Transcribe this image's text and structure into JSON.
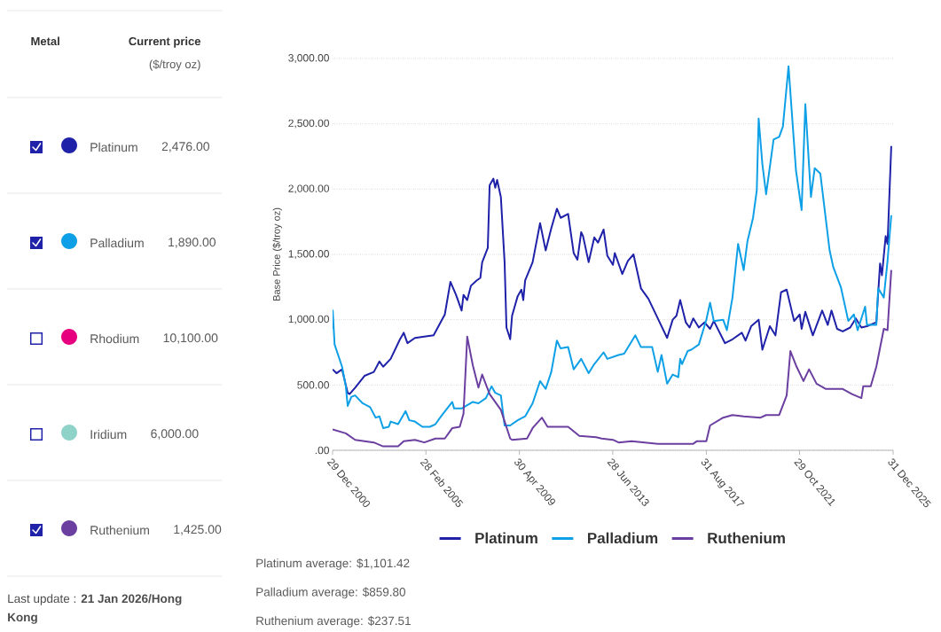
{
  "chart_data": [
    {
      "type": "other",
      "categories": [
        "Platinum",
        "Palladium",
        "Rhodium",
        "Iridium",
        "Ruthenium"
      ],
      "value_labels": [
        "2,476.00",
        "1,890.00",
        "10,100.00",
        "6,000.00",
        "1,425.00"
      ],
      "colors": [
        "#1f22a8",
        "#0ea0e6",
        "#e6007e",
        "#8fd3c8",
        "#6b3fa0"
      ],
      "annotations": [
        "Metal",
        "Current price",
        "($/troy oz)",
        "Last update : **21 Jan 2026/Hong Kong**"
      ]
    },
    {
      "type": "line",
      "ylabel": "Base Price ($/troy oz)",
      "xlim": [
        "2000-12-29",
        "2025-12-31"
      ],
      "ylim": [
        0,
        3000
      ],
      "xticks": [
        {
          "value": "2000-12-29",
          "label": "29 Dec 2000"
        },
        {
          "value": "2005-02-28",
          "label": "28 Feb 2005"
        },
        {
          "value": "2009-04-30",
          "label": "30 Apr 2009"
        },
        {
          "value": "2013-06-28",
          "label": "28 Jun 2013"
        },
        {
          "value": "2017-08-31",
          "label": "31 Aug 2017"
        },
        {
          "value": "2021-10-29",
          "label": "29 Oct 2021"
        },
        {
          "value": "2025-12-31",
          "label": "31 Dec 2025"
        }
      ],
      "yticks": [
        {
          "value": 0,
          "label": ".00"
        },
        {
          "value": 500,
          "label": "500.00"
        },
        {
          "value": 1000,
          "label": "1,000.00"
        },
        {
          "value": 1500,
          "label": "1,500.00"
        },
        {
          "value": 2000,
          "label": "2,000.00"
        },
        {
          "value": 2500,
          "label": "2,500.00"
        },
        {
          "value": 3000,
          "label": "3,000.00"
        }
      ],
      "grid": "y",
      "legend": "bottom",
      "series": [
        {
          "name": "Platinum",
          "color": "#1f22a8",
          "x": [
            "2000-12-29",
            "2001-03",
            "2001-06",
            "2001-09",
            "2001-10",
            "2002-01",
            "2002-06",
            "2002-11",
            "2003-02",
            "2003-04",
            "2003-08",
            "2004-01",
            "2004-03",
            "2004-05",
            "2004-09",
            "2005-07",
            "2006-01",
            "2006-04",
            "2006-07",
            "2006-10",
            "2006-11",
            "2007-01",
            "2007-03",
            "2007-06",
            "2007-08",
            "2007-09",
            "2007-12",
            "2008-01",
            "2008-03",
            "2008-04",
            "2008-05",
            "2008-07",
            "2008-09",
            "2008-10",
            "2008-12",
            "2009-01",
            "2009-04",
            "2009-06",
            "2009-07",
            "2009-08",
            "2009-12",
            "2010-04",
            "2010-07",
            "2010-10",
            "2011-01",
            "2011-03",
            "2011-07",
            "2011-10",
            "2011-12",
            "2012-02",
            "2012-03",
            "2012-06",
            "2012-09",
            "2012-11",
            "2013-02",
            "2013-04",
            "2013-07",
            "2013-08",
            "2013-12",
            "2014-03",
            "2014-06",
            "2014-10",
            "2015-02",
            "2015-07",
            "2015-12",
            "2016-03",
            "2016-05",
            "2016-07",
            "2016-10",
            "2016-12",
            "2017-02",
            "2017-05",
            "2017-08",
            "2017-11",
            "2018-01",
            "2018-07",
            "2018-11",
            "2019-04",
            "2019-06",
            "2019-09",
            "2020-01",
            "2020-03",
            "2020-07",
            "2020-10",
            "2021-01",
            "2021-04",
            "2021-08",
            "2021-11",
            "2021-12",
            "2022-02",
            "2022-06",
            "2022-11",
            "2023-02",
            "2023-04",
            "2023-07",
            "2023-10",
            "2024-02",
            "2024-05",
            "2024-08",
            "2024-11",
            "2025-04",
            "2025-06",
            "2025-07",
            "2025-09",
            "2025-10",
            "2025-12"
          ],
          "values": [
            620,
            590,
            620,
            440,
            430,
            480,
            570,
            600,
            680,
            640,
            700,
            850,
            900,
            820,
            860,
            880,
            1040,
            1290,
            1190,
            1070,
            1190,
            1150,
            1260,
            1300,
            1320,
            1440,
            1550,
            2030,
            2080,
            2010,
            2070,
            1940,
            1440,
            940,
            850,
            1030,
            1180,
            1230,
            1150,
            1300,
            1440,
            1740,
            1530,
            1700,
            1850,
            1780,
            1810,
            1510,
            1460,
            1670,
            1640,
            1440,
            1630,
            1590,
            1690,
            1490,
            1420,
            1510,
            1350,
            1450,
            1500,
            1240,
            1160,
            1010,
            860,
            1000,
            1030,
            1150,
            980,
            940,
            1010,
            940,
            980,
            930,
            990,
            820,
            850,
            900,
            840,
            950,
            1000,
            770,
            950,
            880,
            1210,
            1230,
            990,
            1040,
            930,
            1060,
            880,
            1070,
            960,
            1070,
            930,
            910,
            940,
            1010,
            940,
            950,
            980,
            1430,
            1340,
            1640,
            1580,
            2330
          ]
        },
        {
          "name": "Palladium",
          "color": "#0ea0e6",
          "x": [
            "2000-12-29",
            "2001-01",
            "2001-02",
            "2001-06",
            "2001-08",
            "2001-09",
            "2001-11",
            "2002-01",
            "2002-05",
            "2002-09",
            "2002-12",
            "2003-02",
            "2003-04",
            "2003-07",
            "2003-08",
            "2003-12",
            "2004-04",
            "2004-06",
            "2004-09",
            "2005-01",
            "2005-05",
            "2005-08",
            "2005-11",
            "2006-05",
            "2006-06",
            "2006-10",
            "2007-04",
            "2007-07",
            "2007-11",
            "2008-02",
            "2008-04",
            "2008-07",
            "2008-09",
            "2008-12",
            "2009-04",
            "2009-08",
            "2009-12",
            "2010-04",
            "2010-07",
            "2010-10",
            "2011-01",
            "2011-03",
            "2011-07",
            "2011-10",
            "2012-02",
            "2012-06",
            "2012-09",
            "2013-02",
            "2013-04",
            "2013-10",
            "2014-01",
            "2014-07",
            "2014-10",
            "2015-04",
            "2015-07",
            "2015-09",
            "2015-12",
            "2016-03",
            "2016-06",
            "2016-07",
            "2016-08",
            "2016-11",
            "2017-01",
            "2017-05",
            "2017-09",
            "2017-11",
            "2018-01",
            "2018-06",
            "2018-08",
            "2018-11",
            "2019-02",
            "2019-05",
            "2019-07",
            "2019-10",
            "2019-12",
            "2020-01",
            "2020-03",
            "2020-05",
            "2020-09",
            "2020-12",
            "2021-02",
            "2021-05",
            "2021-06",
            "2021-09",
            "2021-12",
            "2022-02",
            "2022-05",
            "2022-07",
            "2022-10",
            "2023-03",
            "2023-05",
            "2023-09",
            "2024-01",
            "2024-04",
            "2024-06",
            "2024-10",
            "2024-11",
            "2025-04",
            "2025-05",
            "2025-08",
            "2025-10",
            "2025-12"
          ],
          "values": [
            930,
            1070,
            810,
            640,
            490,
            340,
            410,
            420,
            360,
            330,
            250,
            260,
            170,
            180,
            220,
            200,
            300,
            230,
            220,
            180,
            180,
            200,
            260,
            370,
            320,
            320,
            370,
            360,
            400,
            490,
            440,
            420,
            190,
            190,
            230,
            260,
            360,
            530,
            470,
            600,
            840,
            780,
            790,
            620,
            700,
            590,
            660,
            750,
            700,
            730,
            740,
            880,
            790,
            790,
            600,
            730,
            510,
            580,
            560,
            700,
            660,
            760,
            770,
            810,
            1000,
            1130,
            990,
            1000,
            920,
            1170,
            1580,
            1380,
            1600,
            1780,
            1990,
            2540,
            2190,
            1960,
            2380,
            2400,
            2480,
            2940,
            2740,
            2140,
            1840,
            2650,
            1940,
            2160,
            2120,
            1530,
            1400,
            1250,
            990,
            1040,
            920,
            1100,
            960,
            960,
            1240,
            1170,
            1450,
            1800
          ]
        },
        {
          "name": "Ruthenium",
          "color": "#6b3fa0",
          "x": [
            "2000-12-29",
            "2001-08",
            "2002-01",
            "2002-11",
            "2003-04",
            "2003-12",
            "2004-03",
            "2004-09",
            "2005-02",
            "2005-08",
            "2006-01",
            "2006-05",
            "2006-09",
            "2006-11",
            "2007-01",
            "2007-04",
            "2007-07",
            "2007-09",
            "2008-01",
            "2008-07",
            "2008-12",
            "2009-01",
            "2009-09",
            "2009-12",
            "2010-05",
            "2010-08",
            "2011-07",
            "2012-01",
            "2012-10",
            "2013-01",
            "2013-07",
            "2013-10",
            "2014-05",
            "2015-07",
            "2016-12",
            "2017-02",
            "2017-04",
            "2017-09",
            "2017-11",
            "2018-06",
            "2018-11",
            "2019-05",
            "2020-02",
            "2020-05",
            "2020-12",
            "2021-04",
            "2021-06",
            "2021-09",
            "2022-01",
            "2022-04",
            "2022-08",
            "2023-01",
            "2023-10",
            "2024-03",
            "2024-08",
            "2024-09",
            "2025-01",
            "2025-04",
            "2025-08",
            "2025-10",
            "2025-12"
          ],
          "values": [
            160,
            130,
            80,
            60,
            30,
            30,
            70,
            80,
            60,
            90,
            90,
            170,
            180,
            280,
            870,
            650,
            480,
            580,
            430,
            310,
            90,
            80,
            90,
            170,
            250,
            180,
            180,
            110,
            100,
            90,
            80,
            60,
            70,
            50,
            50,
            50,
            70,
            70,
            190,
            250,
            270,
            260,
            250,
            270,
            270,
            420,
            760,
            650,
            530,
            620,
            510,
            470,
            470,
            430,
            400,
            490,
            490,
            640,
            930,
            920,
            1380
          ]
        }
      ],
      "annotations": [
        "Platinum average:  $1,101.42",
        "Palladium average: $859.80",
        "Ruthenium average: $237.51"
      ]
    }
  ]
}
